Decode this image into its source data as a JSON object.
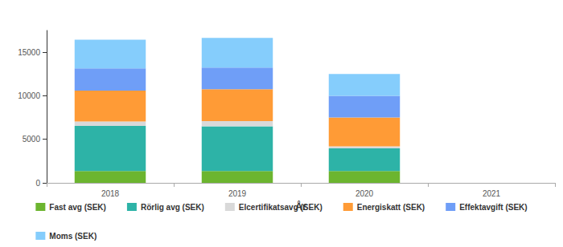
{
  "chart_data": {
    "type": "bar",
    "stacked": true,
    "xlabel": "År",
    "categories": [
      "2018",
      "2019",
      "2020",
      "2021"
    ],
    "series": [
      {
        "name": "Fast avg (SEK)",
        "color": "#6cb52f",
        "values": [
          1350,
          1350,
          1350,
          null
        ]
      },
      {
        "name": "Rörlig avg (SEK)",
        "color": "#2db3a7",
        "values": [
          5200,
          5150,
          2600,
          null
        ]
      },
      {
        "name": "Elcertifikatsavg (SEK)",
        "color": "#d9d9d9",
        "values": [
          500,
          600,
          250,
          null
        ]
      },
      {
        "name": "Energiskatt (SEK)",
        "color": "#ff9b36",
        "values": [
          3550,
          3650,
          3300,
          null
        ]
      },
      {
        "name": "Effektavgift (SEK)",
        "color": "#6f9ef7",
        "values": [
          2550,
          2500,
          2500,
          null
        ]
      },
      {
        "name": "Moms (SEK)",
        "color": "#85cdfc",
        "values": [
          3300,
          3400,
          2500,
          null
        ]
      }
    ],
    "ylim": [
      0,
      17500
    ],
    "yticks": [
      0,
      5000,
      10000,
      15000
    ],
    "grid": false,
    "legend": "bottom"
  }
}
